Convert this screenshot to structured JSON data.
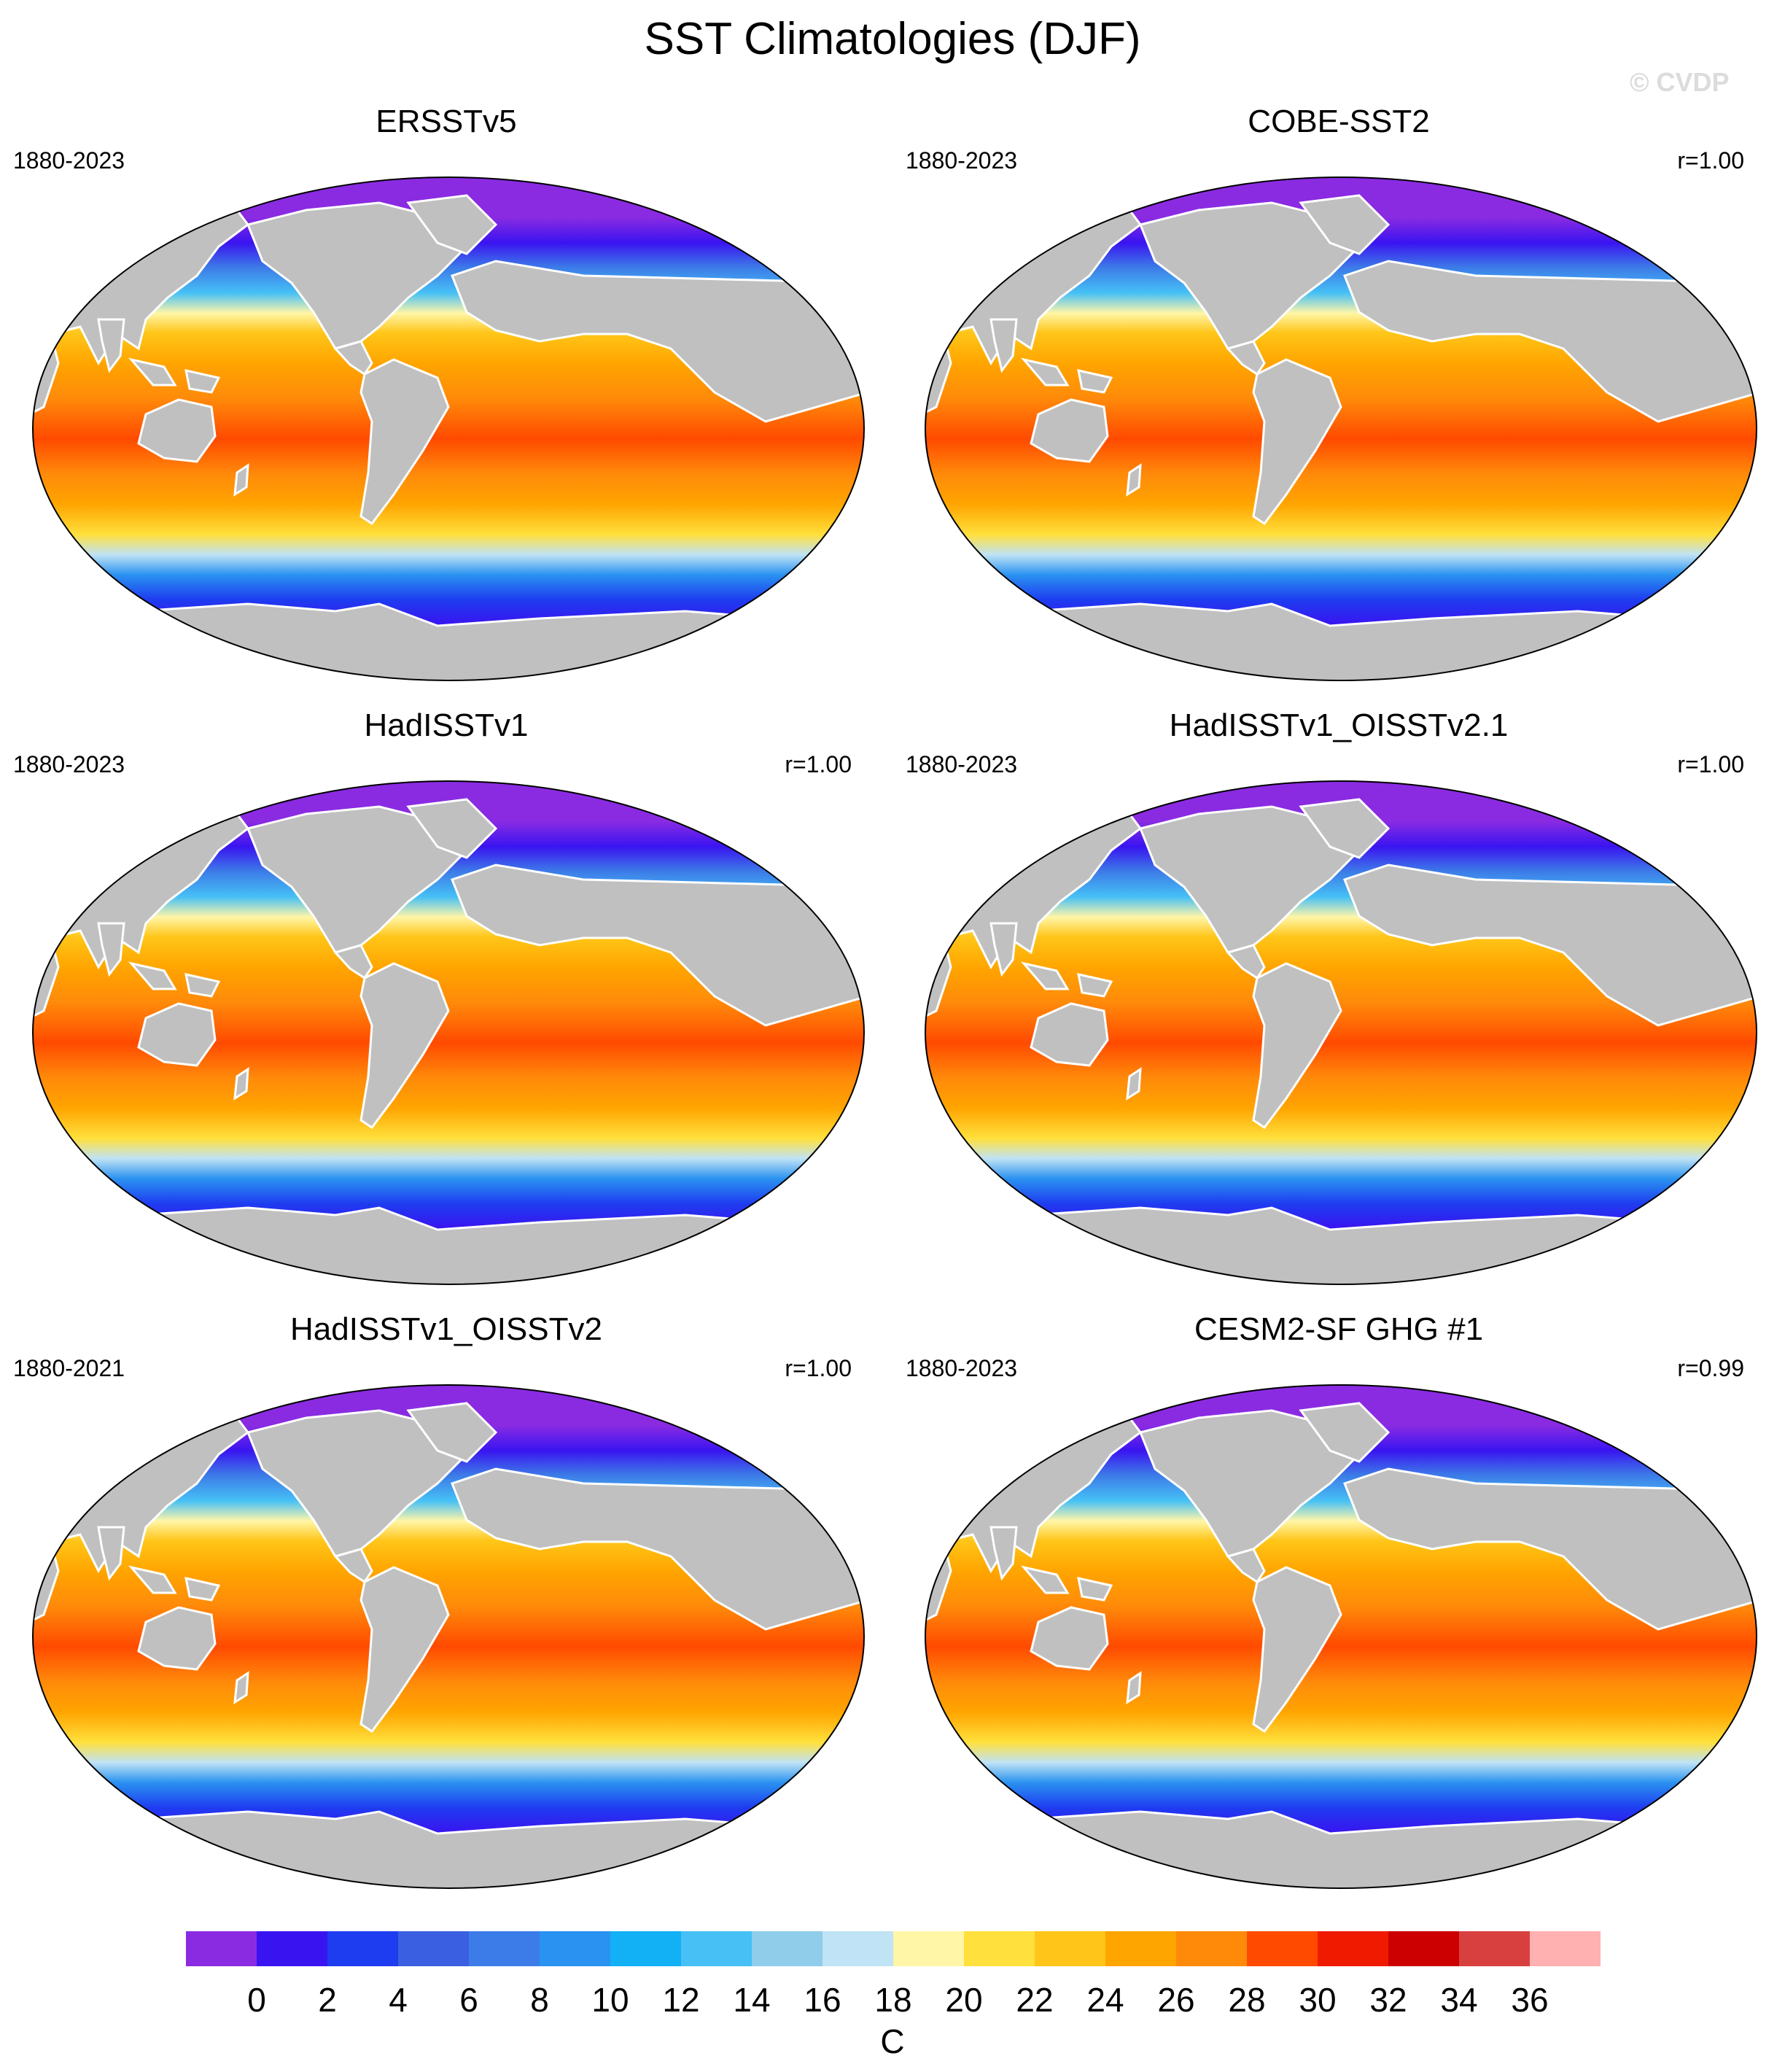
{
  "title": "SST Climatologies (DJF)",
  "watermark": "© CVDP",
  "panels": [
    {
      "name": "ERSSTv5",
      "years": "1880-2023",
      "corr": ""
    },
    {
      "name": "COBE-SST2",
      "years": "1880-2023",
      "corr": "r=1.00"
    },
    {
      "name": "HadISSTv1",
      "years": "1880-2023",
      "corr": "r=1.00"
    },
    {
      "name": "HadISSTv1_OISSTv2.1",
      "years": "1880-2023",
      "corr": "r=1.00"
    },
    {
      "name": "HadISSTv1_OISSTv2",
      "years": "1880-2021",
      "corr": "r=1.00"
    },
    {
      "name": "CESM2-SF GHG #1",
      "years": "1880-2023",
      "corr": "r=0.99"
    }
  ],
  "colorbar": {
    "unit": "C",
    "ticks": [
      "0",
      "2",
      "4",
      "6",
      "8",
      "10",
      "12",
      "14",
      "16",
      "18",
      "20",
      "22",
      "24",
      "26",
      "28",
      "30",
      "32",
      "34",
      "36"
    ],
    "colors": [
      "#8a2be2",
      "#3a14f0",
      "#1e3cf0",
      "#3a5fe0",
      "#3c7ce8",
      "#2a92f0",
      "#12b0f5",
      "#46c0f5",
      "#90cdea",
      "#c0e3f5",
      "#fff6a8",
      "#ffe03c",
      "#ffc518",
      "#ffa500",
      "#ff8a0a",
      "#ff4a00",
      "#f01a00",
      "#cc0000",
      "#d84040",
      "#ffb0b0"
    ]
  },
  "colors": {
    "land": "#c0c0c0",
    "ocean_cold": "#8a2be2",
    "ocean_warm": "#ff4a00"
  }
}
